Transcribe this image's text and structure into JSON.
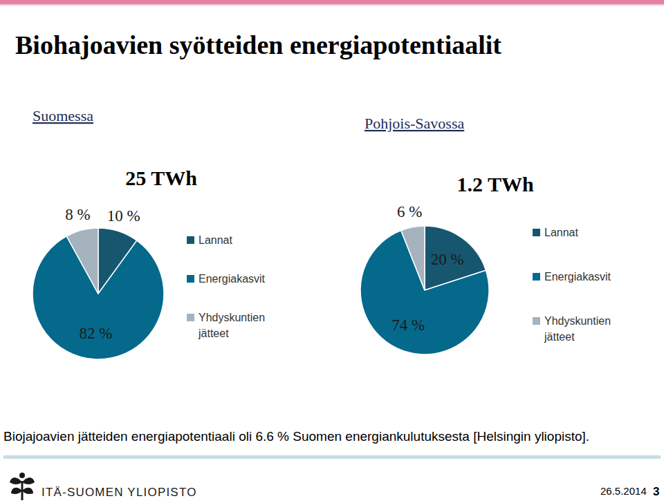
{
  "page": {
    "title": "Biohajoavien syötteiden energiapotentiaalit",
    "footnote": "Biojajoavien jätteiden energiapotentiaali oli 6.6 % Suomen energiankulutuksesta [Helsingin yliopisto].",
    "logo_text": "ITÄ-SUOMEN YLIOPISTO",
    "date": "26.5.2014",
    "page_number": "3"
  },
  "chart_data": [
    {
      "type": "pie",
      "title": "Suomessa",
      "subtitle": "25 TWh",
      "categories": [
        "Lannat",
        "Energiakasvit",
        "Yhdyskuntien jätteet"
      ],
      "values": [
        10,
        82,
        8
      ],
      "value_labels": [
        "10 %",
        "82 %",
        "8 %"
      ],
      "colors": [
        "#17566f",
        "#05698b",
        "#a5b3be"
      ],
      "data_labels": true,
      "legend": "right"
    },
    {
      "type": "pie",
      "title": "Pohjois-Savossa",
      "subtitle": "1.2 TWh",
      "categories": [
        "Lannat",
        "Energiakasvit",
        "Yhdyskuntien jätteet"
      ],
      "values": [
        20,
        74,
        6
      ],
      "value_labels": [
        "20 %",
        "74 %",
        "6 %"
      ],
      "colors": [
        "#17566f",
        "#05698b",
        "#a5b3be"
      ],
      "data_labels": true,
      "legend": "right"
    }
  ]
}
